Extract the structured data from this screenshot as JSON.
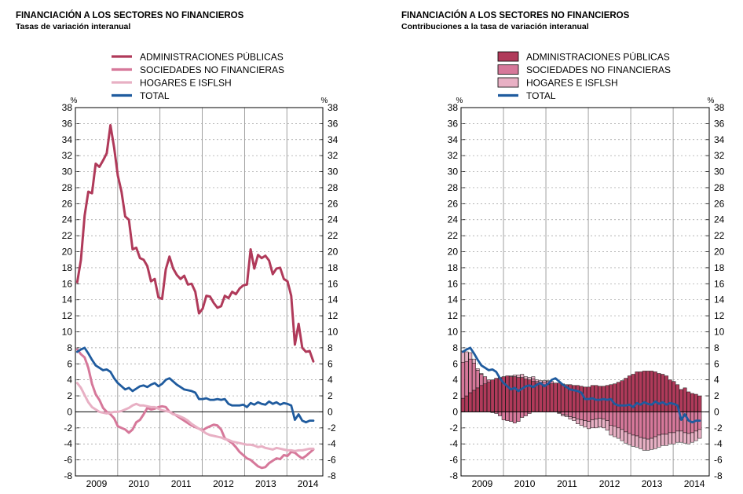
{
  "colors": {
    "admin": "#b03a5a",
    "soc": "#d6789a",
    "hog": "#e8b0c4",
    "total": "#1f5b9e",
    "grid": "#888888",
    "zero": "#000000"
  },
  "chart_data": [
    {
      "type": "line",
      "title": "FINANCIACIÓN A LOS SECTORES NO FINANCIEROS",
      "subtitle": "Tasas de variación interanual",
      "ylabel_left": "%",
      "ylabel_right": "%",
      "ylim": [
        -8,
        38
      ],
      "yticks": [
        -8,
        -6,
        -4,
        -2,
        0,
        2,
        4,
        6,
        8,
        10,
        12,
        14,
        16,
        18,
        20,
        22,
        24,
        26,
        28,
        30,
        32,
        34,
        36,
        38
      ],
      "xlim": [
        2008.5,
        2014.35
      ],
      "xgrid": [
        2009.5,
        2010.5,
        2011.5,
        2012.5,
        2013.5
      ],
      "year_labels": [
        {
          "label": "2009",
          "x": 2009.0
        },
        {
          "label": "2010",
          "x": 2010.0
        },
        {
          "label": "2011",
          "x": 2011.0
        },
        {
          "label": "2012",
          "x": 2012.0
        },
        {
          "label": "2013",
          "x": 2013.0
        },
        {
          "label": "2014",
          "x": 2014.0
        }
      ],
      "legend": [
        {
          "label": "ADMINISTRACIONES PÚBLICAS",
          "key": "admin",
          "kind": "line"
        },
        {
          "label": "SOCIEDADES NO FINANCIERAS",
          "key": "soc",
          "kind": "line"
        },
        {
          "label": "HOGARES E ISFLSH",
          "key": "hog",
          "kind": "line"
        },
        {
          "label": "TOTAL",
          "key": "total",
          "kind": "line"
        }
      ],
      "series": [
        {
          "name": "ADMINISTRACIONES PÚBLICAS",
          "key": "admin",
          "x_start": 2008.5,
          "values": [
            16.2,
            19.0,
            24.5,
            27.5,
            27.3,
            31.0,
            30.6,
            31.4,
            32.3,
            35.8,
            33.0,
            29.5,
            27.5,
            24.4,
            24.0,
            20.3,
            20.5,
            19.2,
            19.0,
            18.2,
            16.3,
            16.6,
            14.3,
            14.1,
            17.8,
            19.4,
            17.9,
            17.1,
            16.6,
            17.0,
            15.9,
            16.0,
            15.0,
            12.3,
            12.9,
            14.5,
            14.4,
            13.6,
            13.0,
            13.2,
            14.5,
            14.2,
            15.0,
            14.7,
            15.4,
            15.8,
            15.9,
            20.3,
            17.9,
            19.6,
            19.2,
            19.5,
            18.9,
            17.2,
            17.9,
            18.0,
            16.6,
            16.3,
            14.5,
            8.4,
            11.0,
            8.0,
            7.5,
            7.6,
            6.3
          ]
        },
        {
          "name": "SOCIEDADES NO FINANCIERAS",
          "key": "soc",
          "x_start": 2008.5,
          "values": [
            7.8,
            7.2,
            6.8,
            5.5,
            3.5,
            2.2,
            1.5,
            0.5,
            0.0,
            -0.3,
            -0.8,
            -1.8,
            -2.0,
            -2.2,
            -2.6,
            -2.2,
            -1.3,
            -1.0,
            -0.3,
            0.5,
            0.3,
            0.4,
            0.6,
            0.7,
            0.6,
            0.0,
            -0.2,
            -0.5,
            -0.8,
            -1.1,
            -1.4,
            -1.7,
            -1.9,
            -2.1,
            -2.3,
            -2.0,
            -1.8,
            -1.6,
            -1.7,
            -2.2,
            -3.3,
            -3.6,
            -3.9,
            -4.4,
            -5.0,
            -5.4,
            -5.8,
            -6.0,
            -6.4,
            -6.8,
            -7.0,
            -6.9,
            -6.4,
            -6.1,
            -5.8,
            -5.9,
            -5.4,
            -5.5,
            -5.0,
            -5.1,
            -5.5,
            -5.8,
            -5.5,
            -5.1,
            -4.7
          ]
        },
        {
          "name": "HOGARES E ISFLSH",
          "key": "hog",
          "x_start": 2008.5,
          "values": [
            3.6,
            3.0,
            2.1,
            1.2,
            0.6,
            0.3,
            0.0,
            -0.1,
            -0.2,
            -0.1,
            0.0,
            0.0,
            0.1,
            0.3,
            0.5,
            0.8,
            1.0,
            0.8,
            0.8,
            0.7,
            0.6,
            0.6,
            0.4,
            0.2,
            0.1,
            0.0,
            -0.3,
            -0.4,
            -0.6,
            -0.8,
            -1.1,
            -1.5,
            -1.8,
            -2.1,
            -2.4,
            -2.7,
            -2.9,
            -3.0,
            -3.1,
            -3.2,
            -3.4,
            -3.5,
            -3.7,
            -3.8,
            -3.9,
            -4.0,
            -4.1,
            -4.1,
            -4.2,
            -4.4,
            -4.3,
            -4.5,
            -4.6,
            -4.7,
            -4.5,
            -4.6,
            -4.7,
            -4.8,
            -4.8,
            -4.9,
            -4.8,
            -4.8,
            -4.7,
            -4.6,
            -4.6
          ]
        },
        {
          "name": "TOTAL",
          "key": "total",
          "x_start": 2008.5,
          "values": [
            7.5,
            7.8,
            8.0,
            7.3,
            6.5,
            5.8,
            5.5,
            5.2,
            5.3,
            5.0,
            4.2,
            3.6,
            3.2,
            2.8,
            3.0,
            2.6,
            2.9,
            3.2,
            3.3,
            3.1,
            3.4,
            3.6,
            3.2,
            3.5,
            4.0,
            4.2,
            3.8,
            3.4,
            3.1,
            2.8,
            2.7,
            2.6,
            2.4,
            1.6,
            1.6,
            1.7,
            1.5,
            1.5,
            1.6,
            1.5,
            1.6,
            1.0,
            0.8,
            0.8,
            0.8,
            0.9,
            0.6,
            1.1,
            0.9,
            1.2,
            1.0,
            0.9,
            1.3,
            1.0,
            1.2,
            0.9,
            1.1,
            1.0,
            0.8,
            -1.0,
            -0.3,
            -1.1,
            -1.3,
            -1.1,
            -1.1
          ]
        }
      ]
    },
    {
      "type": "bar",
      "title": "FINANCIACIÓN A LOS SECTORES NO FINANCIEROS",
      "subtitle": "Contribuciones a la tasa de variación interanual",
      "ylabel_left": "%",
      "ylabel_right": "%",
      "ylim": [
        -8,
        38
      ],
      "yticks": [
        -8,
        -6,
        -4,
        -2,
        0,
        2,
        4,
        6,
        8,
        10,
        12,
        14,
        16,
        18,
        20,
        22,
        24,
        26,
        28,
        30,
        32,
        34,
        36,
        38
      ],
      "xlim": [
        2008.5,
        2014.35
      ],
      "xgrid": [
        2009.5,
        2010.5,
        2011.5,
        2012.5,
        2013.5
      ],
      "year_labels": [
        {
          "label": "2009",
          "x": 2009.0
        },
        {
          "label": "2010",
          "x": 2010.0
        },
        {
          "label": "2011",
          "x": 2011.0
        },
        {
          "label": "2012",
          "x": 2012.0
        },
        {
          "label": "2013",
          "x": 2013.0
        },
        {
          "label": "2014",
          "x": 2014.0
        }
      ],
      "legend": [
        {
          "label": "ADMINISTRACIONES PÚBLICAS",
          "key": "admin",
          "kind": "box"
        },
        {
          "label": "SOCIEDADES NO FINANCIERAS",
          "key": "soc",
          "kind": "box"
        },
        {
          "label": "HOGARES E ISFLSH",
          "key": "hog",
          "kind": "box"
        },
        {
          "label": "TOTAL",
          "key": "total",
          "kind": "line"
        }
      ],
      "x_start": 2008.5,
      "stacked": [
        {
          "name": "ADMINISTRACIONES PÚBLICAS",
          "key": "admin",
          "values": [
            1.7,
            2.0,
            2.4,
            2.7,
            3.0,
            3.3,
            3.5,
            3.7,
            4.0,
            4.2,
            4.3,
            4.4,
            4.5,
            4.4,
            4.4,
            4.3,
            4.3,
            4.1,
            4.0,
            3.8,
            3.6,
            3.5,
            3.4,
            3.4,
            3.5,
            3.6,
            3.6,
            3.5,
            3.4,
            3.4,
            3.3,
            3.3,
            3.2,
            3.1,
            3.1,
            3.3,
            3.3,
            3.2,
            3.2,
            3.3,
            3.4,
            3.5,
            3.7,
            3.9,
            4.2,
            4.5,
            4.7,
            5.0,
            5.0,
            5.1,
            5.1,
            5.1,
            5.0,
            4.8,
            4.7,
            4.5,
            4.0,
            3.8,
            3.4,
            2.8,
            3.0,
            2.5,
            2.3,
            2.2,
            2.0
          ]
        },
        {
          "name": "SOCIEDADES NO FINANCIERAS",
          "key": "soc",
          "values": [
            4.5,
            4.3,
            4.2,
            3.4,
            2.2,
            1.4,
            0.9,
            0.3,
            0.0,
            -0.2,
            -0.5,
            -1.0,
            -1.1,
            -1.2,
            -1.4,
            -1.2,
            -0.7,
            -0.5,
            -0.2,
            0.3,
            0.2,
            0.2,
            0.3,
            0.4,
            0.3,
            0.0,
            -0.1,
            -0.3,
            -0.4,
            -0.6,
            -0.7,
            -0.9,
            -1.0,
            -1.1,
            -1.2,
            -1.0,
            -0.9,
            -0.8,
            -0.9,
            -1.1,
            -1.7,
            -1.8,
            -2.0,
            -2.2,
            -2.5,
            -2.7,
            -2.9,
            -3.0,
            -3.2,
            -3.3,
            -3.4,
            -3.3,
            -3.1,
            -2.9,
            -2.8,
            -2.8,
            -2.6,
            -2.6,
            -2.4,
            -2.4,
            -2.6,
            -2.7,
            -2.6,
            -2.4,
            -2.2
          ]
        },
        {
          "name": "HOGARES E ISFLSH",
          "key": "hog",
          "values": [
            1.4,
            1.2,
            0.8,
            0.5,
            0.2,
            0.1,
            0.0,
            0.0,
            -0.1,
            0.0,
            0.0,
            0.0,
            0.0,
            0.1,
            0.2,
            0.3,
            0.4,
            0.3,
            0.3,
            0.3,
            0.2,
            0.2,
            0.2,
            0.1,
            0.0,
            0.0,
            -0.1,
            -0.2,
            -0.2,
            -0.3,
            -0.4,
            -0.6,
            -0.7,
            -0.8,
            -0.9,
            -1.0,
            -1.1,
            -1.1,
            -1.1,
            -1.2,
            -1.2,
            -1.3,
            -1.3,
            -1.4,
            -1.4,
            -1.4,
            -1.4,
            -1.4,
            -1.4,
            -1.5,
            -1.4,
            -1.4,
            -1.5,
            -1.5,
            -1.4,
            -1.4,
            -1.4,
            -1.4,
            -1.4,
            -1.4,
            -1.3,
            -1.3,
            -1.2,
            -1.2,
            -1.1
          ]
        }
      ],
      "series": [
        {
          "name": "TOTAL",
          "key": "total",
          "x_start": 2008.5,
          "values": [
            7.5,
            7.8,
            8.0,
            7.3,
            6.5,
            5.8,
            5.5,
            5.2,
            5.3,
            5.0,
            4.2,
            3.6,
            3.2,
            2.8,
            3.0,
            2.6,
            2.9,
            3.2,
            3.3,
            3.1,
            3.4,
            3.6,
            3.2,
            3.5,
            4.0,
            4.2,
            3.8,
            3.4,
            3.1,
            2.8,
            2.7,
            2.6,
            2.4,
            1.6,
            1.6,
            1.7,
            1.5,
            1.5,
            1.6,
            1.5,
            1.6,
            1.0,
            0.8,
            0.8,
            0.8,
            0.9,
            0.6,
            1.1,
            0.9,
            1.2,
            1.0,
            0.9,
            1.3,
            1.0,
            1.2,
            0.9,
            1.1,
            1.0,
            0.8,
            -1.0,
            -0.3,
            -1.1,
            -1.3,
            -1.1,
            -1.1
          ]
        }
      ]
    }
  ]
}
